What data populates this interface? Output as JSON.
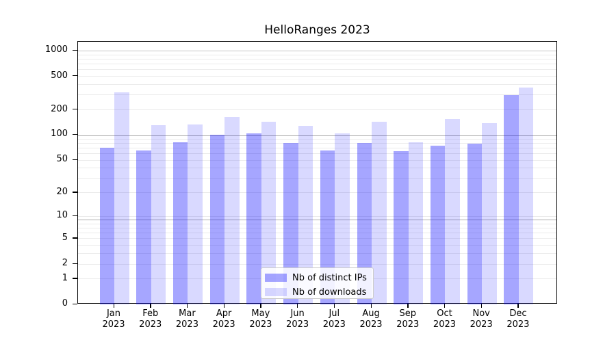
{
  "title": "HelloRanges 2023",
  "chart_data": {
    "type": "bar",
    "y_scale": "log10(1+x)",
    "categories": [
      "Jan",
      "Feb",
      "Mar",
      "Apr",
      "May",
      "Jun",
      "Jul",
      "Aug",
      "Sep",
      "Oct",
      "Nov",
      "Dec"
    ],
    "year": "2023",
    "series": [
      {
        "name": "Nb of distinct IPs",
        "color": "rgba(0,0,255,0.35)",
        "values": [
          71,
          65,
          82,
          100,
          105,
          80,
          65,
          80,
          64,
          74,
          79,
          298
        ]
      },
      {
        "name": "Nb of downloads",
        "color": "rgba(0,0,255,0.15)",
        "values": [
          325,
          132,
          135,
          165,
          145,
          130,
          104,
          143,
          82,
          154,
          140,
          368
        ]
      }
    ],
    "y_ticks": [
      0,
      1,
      2,
      5,
      10,
      20,
      50,
      100,
      200,
      500,
      1000
    ],
    "ylim": [
      0,
      1270
    ],
    "gridlines": {
      "light": [
        1,
        2,
        3,
        4,
        5,
        6,
        7,
        8,
        10,
        20,
        30,
        40,
        50,
        60,
        70,
        80,
        90,
        200,
        300,
        400,
        500,
        600,
        700,
        800,
        900
      ],
      "dark": [
        9,
        99
      ],
      "mid": [
        999
      ]
    },
    "legend_position": "lower center"
  },
  "colors": {
    "grid_light": "#ebebeb",
    "grid_dark": "#ababab",
    "grid_mid": "#c6c6c6",
    "axis": "#000000",
    "legend_border": "#cccccc"
  }
}
